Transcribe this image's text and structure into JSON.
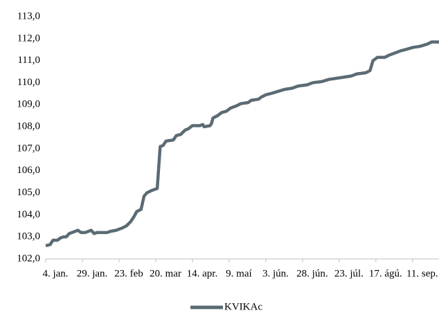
{
  "chart_data": {
    "type": "line",
    "x": [
      0,
      3,
      5,
      8,
      10,
      12,
      14,
      16,
      18,
      22,
      24,
      27,
      29,
      31,
      33,
      35,
      42,
      44,
      48,
      52,
      55,
      58,
      60,
      62,
      65,
      67,
      69,
      72,
      76,
      78,
      80,
      82,
      87,
      89,
      92,
      95,
      97,
      100,
      105,
      107,
      108,
      112,
      113,
      114,
      117,
      120,
      123,
      126,
      130,
      133,
      138,
      140,
      145,
      147,
      150,
      153,
      158,
      163,
      168,
      172,
      178,
      182,
      188,
      193,
      198,
      203,
      208,
      212,
      218,
      221,
      223,
      226,
      231,
      234,
      238,
      242,
      245,
      250,
      255,
      260,
      263,
      268
    ],
    "series": [
      {
        "name": "KVIKAc",
        "color": "#5b6b73",
        "values": [
          102.6,
          102.65,
          102.85,
          102.85,
          102.95,
          103.0,
          103.0,
          103.15,
          103.2,
          103.3,
          103.2,
          103.2,
          103.25,
          103.3,
          103.15,
          103.2,
          103.2,
          103.25,
          103.3,
          103.4,
          103.5,
          103.7,
          103.9,
          104.15,
          104.25,
          104.85,
          105.0,
          105.1,
          105.2,
          107.1,
          107.15,
          107.35,
          107.4,
          107.6,
          107.65,
          107.85,
          107.9,
          108.05,
          108.05,
          108.1,
          108.0,
          108.05,
          108.15,
          108.4,
          108.5,
          108.65,
          108.7,
          108.85,
          108.95,
          109.05,
          109.1,
          109.2,
          109.25,
          109.35,
          109.45,
          109.5,
          109.6,
          109.7,
          109.75,
          109.85,
          109.9,
          110.0,
          110.05,
          110.15,
          110.2,
          110.25,
          110.3,
          110.4,
          110.45,
          110.55,
          111.0,
          111.15,
          111.15,
          111.25,
          111.35,
          111.45,
          111.5,
          111.6,
          111.65,
          111.75,
          111.85,
          111.85
        ]
      }
    ],
    "xlim": [
      0,
      268
    ],
    "xticks": [
      {
        "value": 0,
        "label": "4. jan."
      },
      {
        "value": 25,
        "label": "29. jan."
      },
      {
        "value": 50,
        "label": "23. feb"
      },
      {
        "value": 75,
        "label": "20. mar"
      },
      {
        "value": 100,
        "label": "14. apr."
      },
      {
        "value": 125,
        "label": "9. maí"
      },
      {
        "value": 150,
        "label": "3. jún."
      },
      {
        "value": 175,
        "label": "28. jún."
      },
      {
        "value": 200,
        "label": "23. júl."
      },
      {
        "value": 225,
        "label": "17. ágú."
      },
      {
        "value": 250,
        "label": "11. sep."
      }
    ],
    "ylim": [
      102,
      113
    ],
    "yticks": [
      {
        "value": 102,
        "label": "102,0"
      },
      {
        "value": 103,
        "label": "103,0"
      },
      {
        "value": 104,
        "label": "104,0"
      },
      {
        "value": 105,
        "label": "105,0"
      },
      {
        "value": 106,
        "label": "106,0"
      },
      {
        "value": 107,
        "label": "107,0"
      },
      {
        "value": 108,
        "label": "108,0"
      },
      {
        "value": 109,
        "label": "109,0"
      },
      {
        "value": 110,
        "label": "110,0"
      },
      {
        "value": 111,
        "label": "111,0"
      },
      {
        "value": 112,
        "label": "112,0"
      },
      {
        "value": 113,
        "label": "113,0"
      }
    ],
    "legend": "bottom"
  }
}
